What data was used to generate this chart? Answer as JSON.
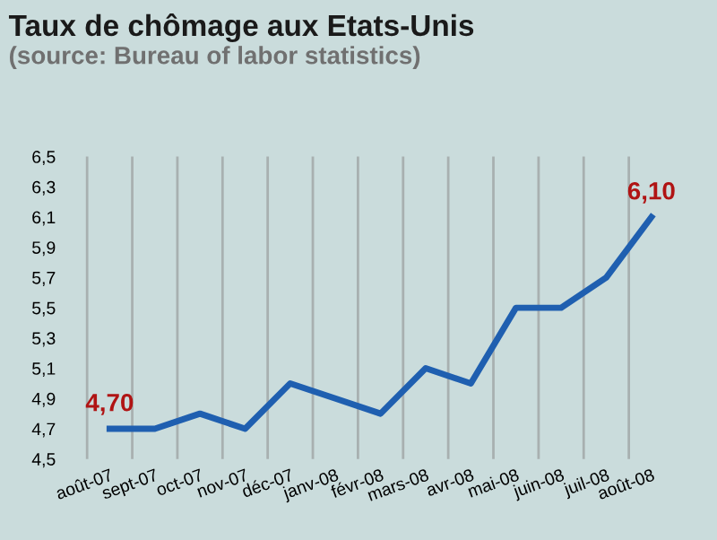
{
  "chart_data": {
    "type": "line",
    "title": "Taux de chômage aux Etats-Unis",
    "subtitle": "(source: Bureau of labor statistics)",
    "categories": [
      "août-07",
      "sept-07",
      "oct-07",
      "nov-07",
      "déc-07",
      "janv-08",
      "févr-08",
      "mars-08",
      "avr-08",
      "mai-08",
      "juin-08",
      "juil-08",
      "août-08"
    ],
    "series": [
      {
        "color": "#1f5fb0",
        "values": [
          4.7,
          4.7,
          4.8,
          4.7,
          5.0,
          4.9,
          4.8,
          5.1,
          5.0,
          5.5,
          5.5,
          5.7,
          6.1
        ],
        "value_labels": [
          "4,70",
          null,
          null,
          null,
          null,
          null,
          null,
          null,
          null,
          null,
          null,
          null,
          "6,10"
        ]
      }
    ],
    "ylim": [
      4.5,
      6.5
    ],
    "yticks": [
      {
        "value": 4.5,
        "label": "4,5"
      },
      {
        "value": 4.7,
        "label": "4,7"
      },
      {
        "value": 4.9,
        "label": "4,9"
      },
      {
        "value": 5.1,
        "label": "5,1"
      },
      {
        "value": 5.3,
        "label": "5,3"
      },
      {
        "value": 5.5,
        "label": "5,5"
      },
      {
        "value": 5.7,
        "label": "5,7"
      },
      {
        "value": 5.9,
        "label": "5,9"
      },
      {
        "value": 6.1,
        "label": "6,1"
      },
      {
        "value": 6.3,
        "label": "6,3"
      },
      {
        "value": 6.5,
        "label": "6,5"
      }
    ],
    "grid": "x",
    "legend": false,
    "marker": "none",
    "line_style": "solid"
  }
}
